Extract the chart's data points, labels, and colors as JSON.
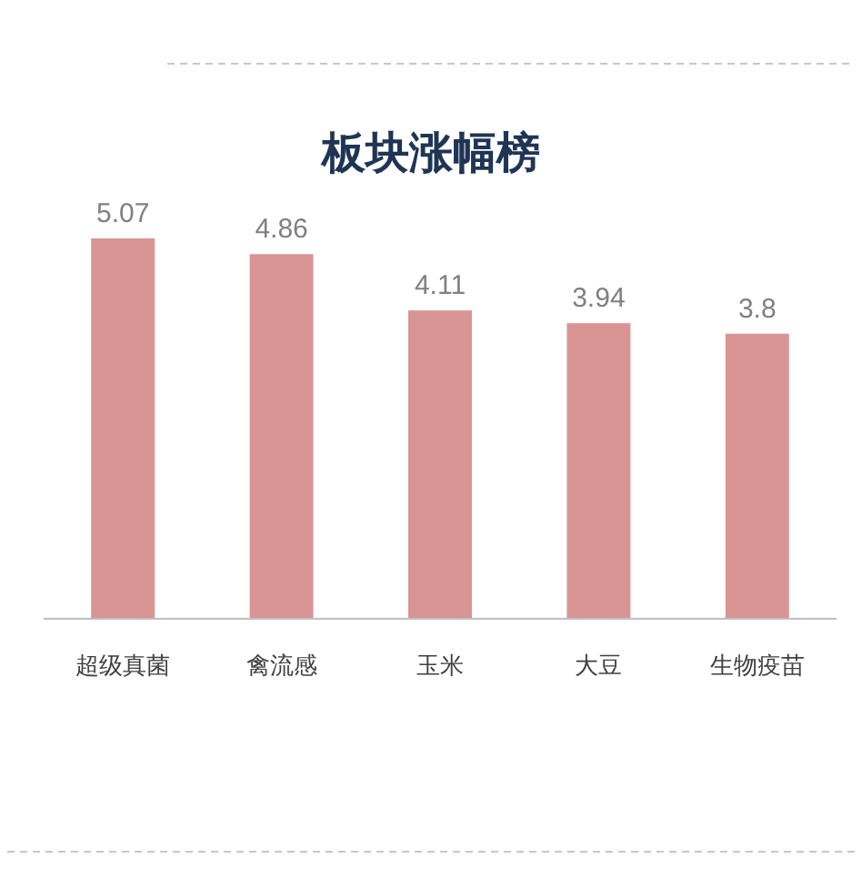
{
  "chart_data": {
    "type": "bar",
    "title": "板块涨幅榜",
    "categories": [
      "超级真菌",
      "禽流感",
      "玉米",
      "大豆",
      "生物疫苗"
    ],
    "values": [
      5.07,
      4.86,
      4.11,
      3.94,
      3.8
    ],
    "color": "#d99594",
    "data_labels": true
  }
}
